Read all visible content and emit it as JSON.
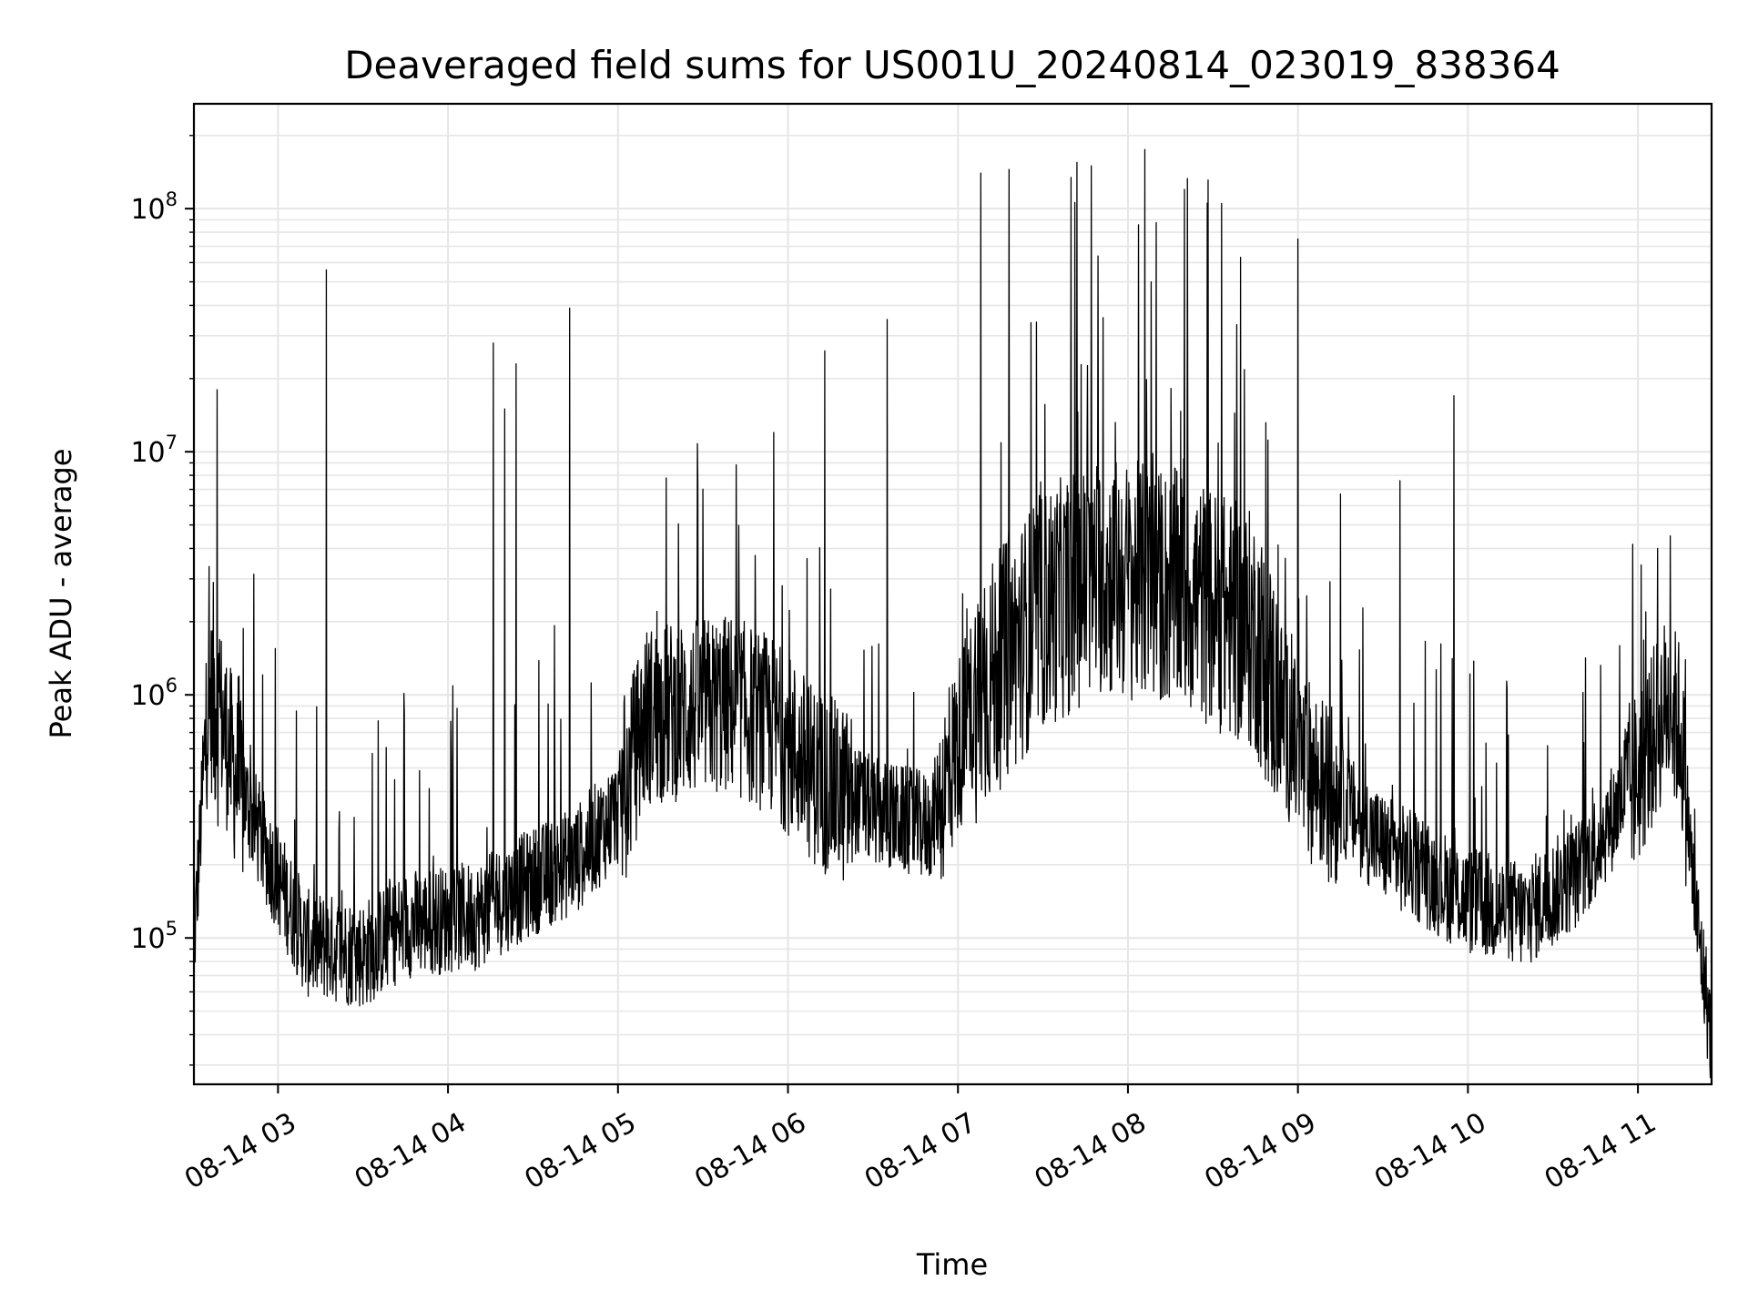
{
  "chart_data": {
    "type": "line",
    "title": "Deaveraged field sums for US001U_20240814_023019_838364",
    "xlabel": "Time",
    "ylabel": "Peak ADU - average",
    "yscale": "log",
    "grid": true,
    "legend": "none",
    "line_color": "#000000",
    "x_start": "2024-08-14 02:30:19",
    "x_end": "2024-08-14 11:26:00",
    "xlim": [
      "2024-08-14 02:30:19",
      "2024-08-14 11:26:00"
    ],
    "ylim": [
      25000,
      270000000
    ],
    "x_ticks": [
      {
        "time": "2024-08-14 03:00",
        "label": "08-14 03"
      },
      {
        "time": "2024-08-14 04:00",
        "label": "08-14 04"
      },
      {
        "time": "2024-08-14 05:00",
        "label": "08-14 05"
      },
      {
        "time": "2024-08-14 06:00",
        "label": "08-14 06"
      },
      {
        "time": "2024-08-14 07:00",
        "label": "08-14 07"
      },
      {
        "time": "2024-08-14 08:00",
        "label": "08-14 08"
      },
      {
        "time": "2024-08-14 09:00",
        "label": "08-14 09"
      },
      {
        "time": "2024-08-14 10:00",
        "label": "08-14 10"
      },
      {
        "time": "2024-08-14 11:00",
        "label": "08-14 11"
      }
    ],
    "y_ticks": [
      {
        "value": 100000,
        "base": "10",
        "exp": "5"
      },
      {
        "value": 1000000,
        "base": "10",
        "exp": "6"
      },
      {
        "value": 10000000,
        "base": "10",
        "exp": "7"
      },
      {
        "value": 100000000,
        "base": "10",
        "exp": "8"
      }
    ],
    "series": [
      {
        "baseline_profile": [
          {
            "time": "2024-08-14 02:30:19",
            "value": 95000
          },
          {
            "time": "2024-08-14 02:35:00",
            "value": 900000
          },
          {
            "time": "2024-08-14 02:38:00",
            "value": 1100000
          },
          {
            "time": "2024-08-14 02:45:00",
            "value": 500000
          },
          {
            "time": "2024-08-14 02:55:00",
            "value": 250000
          },
          {
            "time": "2024-08-14 03:10:00",
            "value": 100000
          },
          {
            "time": "2024-08-14 03:30:00",
            "value": 90000
          },
          {
            "time": "2024-08-14 03:45:00",
            "value": 120000
          },
          {
            "time": "2024-08-14 04:10:00",
            "value": 130000
          },
          {
            "time": "2024-08-14 04:30:00",
            "value": 180000
          },
          {
            "time": "2024-08-14 04:45:00",
            "value": 220000
          },
          {
            "time": "2024-08-14 05:00:00",
            "value": 350000
          },
          {
            "time": "2024-08-14 05:10:00",
            "value": 900000
          },
          {
            "time": "2024-08-14 05:40:00",
            "value": 1000000
          },
          {
            "time": "2024-08-14 05:55:00",
            "value": 800000
          },
          {
            "time": "2024-08-14 06:10:00",
            "value": 500000
          },
          {
            "time": "2024-08-14 06:30:00",
            "value": 350000
          },
          {
            "time": "2024-08-14 06:50:00",
            "value": 300000
          },
          {
            "time": "2024-08-14 07:05:00",
            "value": 1000000
          },
          {
            "time": "2024-08-14 07:30:00",
            "value": 2500000
          },
          {
            "time": "2024-08-14 07:50:00",
            "value": 3500000
          },
          {
            "time": "2024-08-14 08:20:00",
            "value": 3000000
          },
          {
            "time": "2024-08-14 08:45:00",
            "value": 2000000
          },
          {
            "time": "2024-08-14 09:00:00",
            "value": 600000
          },
          {
            "time": "2024-08-14 09:30:00",
            "value": 250000
          },
          {
            "time": "2024-08-14 10:00:00",
            "value": 150000
          },
          {
            "time": "2024-08-14 10:20:00",
            "value": 130000
          },
          {
            "time": "2024-08-14 10:40:00",
            "value": 200000
          },
          {
            "time": "2024-08-14 11:00:00",
            "value": 500000
          },
          {
            "time": "2024-08-14 11:10:00",
            "value": 1000000
          },
          {
            "time": "2024-08-14 11:15:00",
            "value": 800000
          },
          {
            "time": "2024-08-14 11:20:00",
            "value": 150000
          },
          {
            "time": "2024-08-14 11:26:00",
            "value": 40000
          }
        ],
        "spikes": [
          {
            "time": "2024-08-14 02:38:30",
            "value": 18000000
          },
          {
            "time": "2024-08-14 03:17:00",
            "value": 56000000
          },
          {
            "time": "2024-08-14 04:16:00",
            "value": 28000000
          },
          {
            "time": "2024-08-14 04:20:00",
            "value": 15000000
          },
          {
            "time": "2024-08-14 04:24:00",
            "value": 23000000
          },
          {
            "time": "2024-08-14 04:43:00",
            "value": 39000000
          },
          {
            "time": "2024-08-14 05:17:00",
            "value": 7800000
          },
          {
            "time": "2024-08-14 05:28:00",
            "value": 10800000
          },
          {
            "time": "2024-08-14 05:55:00",
            "value": 12000000
          },
          {
            "time": "2024-08-14 06:13:00",
            "value": 26000000
          },
          {
            "time": "2024-08-14 06:35:00",
            "value": 35000000
          },
          {
            "time": "2024-08-14 07:08:00",
            "value": 140000000
          },
          {
            "time": "2024-08-14 07:18:00",
            "value": 145000000
          },
          {
            "time": "2024-08-14 07:42:00",
            "value": 155000000
          },
          {
            "time": "2024-08-14 07:47:00",
            "value": 150000000
          },
          {
            "time": "2024-08-14 08:06:00",
            "value": 175000000
          },
          {
            "time": "2024-08-14 08:20:00",
            "value": 120000000
          },
          {
            "time": "2024-08-14 08:33:00",
            "value": 105000000
          },
          {
            "time": "2024-08-14 09:00:00",
            "value": 75000000
          },
          {
            "time": "2024-08-14 09:15:00",
            "value": 6700000
          },
          {
            "time": "2024-08-14 09:36:00",
            "value": 7600000
          },
          {
            "time": "2024-08-14 09:55:00",
            "value": 17000000
          },
          {
            "time": "2024-08-14 11:07:00",
            "value": 4000000
          }
        ]
      }
    ]
  }
}
